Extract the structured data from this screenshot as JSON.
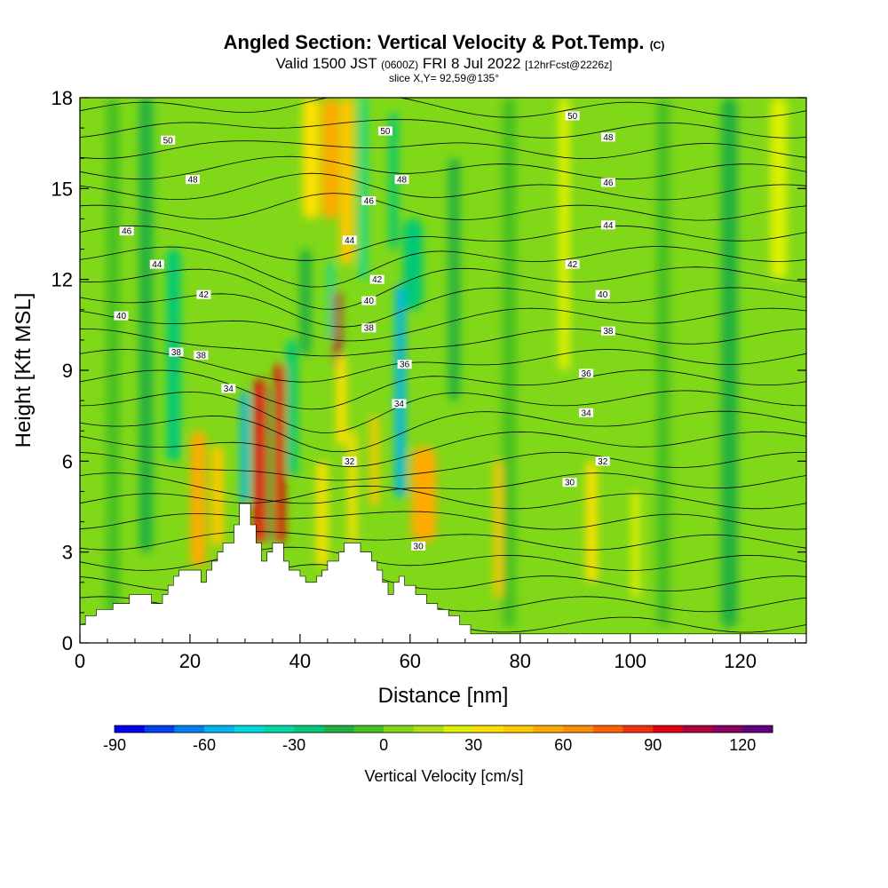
{
  "header": {
    "title_main": "Angled Section: Vertical Velocity & Pot.Temp.",
    "title_suffix": "(C)",
    "valid_a": "Valid 1500 JST",
    "valid_b": "(0600Z)",
    "valid_c": "FRI 8 Jul 2022",
    "valid_d": "[12hrFcst@2226z]",
    "slice": "slice X,Y= 92,59@135°"
  },
  "chart_data": {
    "type": "heatmap",
    "xlabel": "Distance [nm]",
    "ylabel": "Height [Kft MSL]",
    "xlim": [
      0,
      132
    ],
    "ylim": [
      0,
      18
    ],
    "xticks": [
      0,
      20,
      40,
      60,
      80,
      100,
      120
    ],
    "yticks": [
      0,
      3,
      6,
      9,
      12,
      15,
      18
    ],
    "colorbar": {
      "label": "Vertical Velocity [cm/s]",
      "min": -90,
      "max": 130,
      "ticks": [
        -90,
        -60,
        -30,
        0,
        30,
        60,
        90,
        120
      ],
      "colors": [
        "#0000f0",
        "#0040f0",
        "#0080f0",
        "#00b4f0",
        "#00d8e0",
        "#00d8a8",
        "#00c878",
        "#20b040",
        "#48c020",
        "#80d818",
        "#b0e010",
        "#e0f000",
        "#ffe000",
        "#ffc800",
        "#ffaa00",
        "#ff8c00",
        "#ff6000",
        "#f03010",
        "#e00010",
        "#b00040",
        "#8c0060",
        "#600080"
      ]
    },
    "terrain_profile": [
      [
        0,
        0.6
      ],
      [
        1,
        0.6
      ],
      [
        1,
        0.9
      ],
      [
        2,
        0.9
      ],
      [
        3,
        0.9
      ],
      [
        3,
        1.1
      ],
      [
        4,
        1.1
      ],
      [
        5,
        1.1
      ],
      [
        6,
        1.1
      ],
      [
        6,
        1.3
      ],
      [
        7,
        1.3
      ],
      [
        8,
        1.3
      ],
      [
        9,
        1.3
      ],
      [
        9,
        1.6
      ],
      [
        10,
        1.6
      ],
      [
        12,
        1.6
      ],
      [
        13,
        1.6
      ],
      [
        13,
        1.3
      ],
      [
        14,
        1.3
      ],
      [
        15,
        1.3
      ],
      [
        15,
        1.6
      ],
      [
        16,
        1.6
      ],
      [
        16,
        1.9
      ],
      [
        17,
        1.9
      ],
      [
        17,
        2.2
      ],
      [
        18,
        2.2
      ],
      [
        18,
        2.4
      ],
      [
        19,
        2.4
      ],
      [
        22,
        2.4
      ],
      [
        22,
        2.0
      ],
      [
        23,
        2.0
      ],
      [
        23,
        2.4
      ],
      [
        24,
        2.4
      ],
      [
        24,
        2.7
      ],
      [
        25,
        2.7
      ],
      [
        25,
        3.0
      ],
      [
        26,
        3.0
      ],
      [
        26,
        3.3
      ],
      [
        27,
        3.3
      ],
      [
        28,
        3.3
      ],
      [
        28,
        3.9
      ],
      [
        29,
        3.9
      ],
      [
        29,
        4.6
      ],
      [
        30,
        4.6
      ],
      [
        31,
        4.6
      ],
      [
        31,
        3.9
      ],
      [
        32,
        3.9
      ],
      [
        32,
        3.3
      ],
      [
        33,
        3.3
      ],
      [
        33,
        2.7
      ],
      [
        34,
        2.7
      ],
      [
        34,
        3.0
      ],
      [
        35,
        3.0
      ],
      [
        35,
        3.3
      ],
      [
        36,
        3.3
      ],
      [
        37,
        3.3
      ],
      [
        37,
        2.7
      ],
      [
        38,
        2.7
      ],
      [
        38,
        2.4
      ],
      [
        39,
        2.4
      ],
      [
        40,
        2.4
      ],
      [
        40,
        2.2
      ],
      [
        41,
        2.2
      ],
      [
        41,
        2.0
      ],
      [
        42,
        2.0
      ],
      [
        43,
        2.0
      ],
      [
        43,
        2.2
      ],
      [
        44,
        2.2
      ],
      [
        44,
        2.4
      ],
      [
        45,
        2.4
      ],
      [
        45,
        2.7
      ],
      [
        46,
        2.7
      ],
      [
        47,
        2.7
      ],
      [
        47,
        3.0
      ],
      [
        48,
        3.0
      ],
      [
        48,
        3.3
      ],
      [
        49,
        3.3
      ],
      [
        50,
        3.3
      ],
      [
        51,
        3.3
      ],
      [
        51,
        3.0
      ],
      [
        52,
        3.0
      ],
      [
        53,
        3.0
      ],
      [
        53,
        2.7
      ],
      [
        54,
        2.7
      ],
      [
        54,
        2.4
      ],
      [
        55,
        2.4
      ],
      [
        55,
        2.0
      ],
      [
        56,
        2.0
      ],
      [
        56,
        1.6
      ],
      [
        57,
        1.6
      ],
      [
        57,
        2.0
      ],
      [
        58,
        2.0
      ],
      [
        58,
        2.2
      ],
      [
        59,
        2.2
      ],
      [
        59,
        1.9
      ],
      [
        60,
        1.9
      ],
      [
        61,
        1.9
      ],
      [
        61,
        1.6
      ],
      [
        62,
        1.6
      ],
      [
        63,
        1.6
      ],
      [
        63,
        1.3
      ],
      [
        64,
        1.3
      ],
      [
        65,
        1.3
      ],
      [
        65,
        1.1
      ],
      [
        66,
        1.1
      ],
      [
        67,
        1.1
      ],
      [
        67,
        0.9
      ],
      [
        68,
        0.9
      ],
      [
        69,
        0.9
      ],
      [
        69,
        0.6
      ],
      [
        70,
        0.6
      ],
      [
        71,
        0.6
      ],
      [
        71,
        0.3
      ],
      [
        72,
        0.3
      ],
      [
        132,
        0.3
      ]
    ],
    "velocity_columns": [
      {
        "x": 6,
        "w": 2.5,
        "z0": 0.6,
        "z1": 18,
        "value": -8
      },
      {
        "x": 12,
        "w": 2.5,
        "z0": 3,
        "z1": 18,
        "value": -14
      },
      {
        "x": 17,
        "w": 2.5,
        "z0": 6,
        "z1": 13,
        "value": -28
      },
      {
        "x": 21.5,
        "w": 2.8,
        "z0": 2.5,
        "z1": 7,
        "value": 55
      },
      {
        "x": 25,
        "w": 2.2,
        "z0": 3.2,
        "z1": 6.5,
        "value": 45
      },
      {
        "x": 30,
        "w": 1.5,
        "z0": 4.6,
        "z1": 8.3,
        "value": -55
      },
      {
        "x": 32.8,
        "w": 2.3,
        "z0": 3.3,
        "z1": 8.7,
        "value": 95
      },
      {
        "x": 36.3,
        "w": 1.8,
        "z0": 3.3,
        "z1": 9.2,
        "value": 98
      },
      {
        "x": 34.5,
        "w": 1.2,
        "z0": 3.3,
        "z1": 8.5,
        "value": -20
      },
      {
        "x": 38.5,
        "w": 2.0,
        "z0": 5.5,
        "z1": 10,
        "value": -30
      },
      {
        "x": 41,
        "w": 2.0,
        "z0": 9.5,
        "z1": 13,
        "value": -20
      },
      {
        "x": 44,
        "w": 2.0,
        "z0": 2.5,
        "z1": 6.0,
        "value": 35
      },
      {
        "x": 46.8,
        "w": 1.2,
        "z0": 9.0,
        "z1": 11.6,
        "value": 100
      },
      {
        "x": 45.6,
        "w": 1.0,
        "z0": 10,
        "z1": 12.6,
        "value": -35
      },
      {
        "x": 47.5,
        "w": 1.8,
        "z0": 6.5,
        "z1": 9.5,
        "value": 35
      },
      {
        "x": 49.5,
        "w": 1.5,
        "z0": 3.3,
        "z1": 7.0,
        "value": 30
      },
      {
        "x": 51.5,
        "w": 1.2,
        "z0": 12,
        "z1": 18,
        "value": -40
      },
      {
        "x": 53.5,
        "w": 1.5,
        "z0": 4.5,
        "z1": 7.5,
        "value": 40
      },
      {
        "x": 58.2,
        "w": 1.8,
        "z0": 4.8,
        "z1": 11.8,
        "value": -55
      },
      {
        "x": 57,
        "w": 1.5,
        "z0": 13,
        "z1": 17.5,
        "value": -30
      },
      {
        "x": 62.5,
        "w": 4.5,
        "z0": 3.3,
        "z1": 6.5,
        "value": 52
      },
      {
        "x": 60.5,
        "w": 3.5,
        "z0": 11,
        "z1": 14,
        "value": -25
      },
      {
        "x": 45.5,
        "w": 3.0,
        "z0": 14,
        "z1": 18,
        "value": 50
      },
      {
        "x": 48.5,
        "w": 2.5,
        "z0": 12.5,
        "z1": 18,
        "value": 42
      },
      {
        "x": 42,
        "w": 3.0,
        "z0": 14,
        "z1": 18,
        "value": 35
      },
      {
        "x": 76,
        "w": 1.5,
        "z0": 1.5,
        "z1": 6.0,
        "value": 45
      },
      {
        "x": 78,
        "w": 2.5,
        "z0": 0.5,
        "z1": 18,
        "value": -8
      },
      {
        "x": 93,
        "w": 2.0,
        "z0": 2.0,
        "z1": 6.0,
        "value": 30
      },
      {
        "x": 101,
        "w": 1.5,
        "z0": 1.5,
        "z1": 5.0,
        "value": 28
      },
      {
        "x": 106,
        "w": 2.5,
        "z0": 0.5,
        "z1": 18,
        "value": -10
      },
      {
        "x": 118,
        "w": 3.0,
        "z0": 0.5,
        "z1": 18,
        "value": -12
      },
      {
        "x": 127,
        "w": 3.0,
        "z0": 12,
        "z1": 18,
        "value": 24
      },
      {
        "x": 88,
        "w": 2.0,
        "z0": 9,
        "z1": 18,
        "value": 24
      },
      {
        "x": 68,
        "w": 2.0,
        "z0": 8,
        "z1": 16,
        "value": -16
      }
    ],
    "isentrope_labels": [
      {
        "text": "50",
        "x": 16,
        "z": 16.6
      },
      {
        "text": "48",
        "x": 20.5,
        "z": 15.3
      },
      {
        "text": "46",
        "x": 8.5,
        "z": 13.6
      },
      {
        "text": "44",
        "x": 14,
        "z": 12.5
      },
      {
        "text": "42",
        "x": 22.5,
        "z": 11.5
      },
      {
        "text": "40",
        "x": 7.5,
        "z": 10.8
      },
      {
        "text": "38",
        "x": 17.5,
        "z": 9.6
      },
      {
        "text": "38",
        "x": 22,
        "z": 9.5
      },
      {
        "text": "34",
        "x": 27,
        "z": 8.4
      },
      {
        "text": "50",
        "x": 55.5,
        "z": 16.9
      },
      {
        "text": "48",
        "x": 58.5,
        "z": 15.3
      },
      {
        "text": "46",
        "x": 52.5,
        "z": 14.6
      },
      {
        "text": "44",
        "x": 49,
        "z": 13.3
      },
      {
        "text": "42",
        "x": 54,
        "z": 12.0
      },
      {
        "text": "40",
        "x": 52.5,
        "z": 11.3
      },
      {
        "text": "38",
        "x": 52.5,
        "z": 10.4
      },
      {
        "text": "36",
        "x": 59,
        "z": 9.2
      },
      {
        "text": "34",
        "x": 58,
        "z": 7.9
      },
      {
        "text": "32",
        "x": 49,
        "z": 6.0
      },
      {
        "text": "30",
        "x": 61.5,
        "z": 3.2
      },
      {
        "text": "50",
        "x": 89.5,
        "z": 17.4
      },
      {
        "text": "48",
        "x": 96,
        "z": 16.7
      },
      {
        "text": "46",
        "x": 96,
        "z": 15.2
      },
      {
        "text": "44",
        "x": 96,
        "z": 13.8
      },
      {
        "text": "42",
        "x": 89.5,
        "z": 12.5
      },
      {
        "text": "40",
        "x": 95,
        "z": 11.5
      },
      {
        "text": "38",
        "x": 96,
        "z": 10.3
      },
      {
        "text": "36",
        "x": 92,
        "z": 8.9
      },
      {
        "text": "34",
        "x": 92,
        "z": 7.6
      },
      {
        "text": "32",
        "x": 95,
        "z": 6.0
      },
      {
        "text": "30",
        "x": 89,
        "z": 5.3
      }
    ]
  }
}
